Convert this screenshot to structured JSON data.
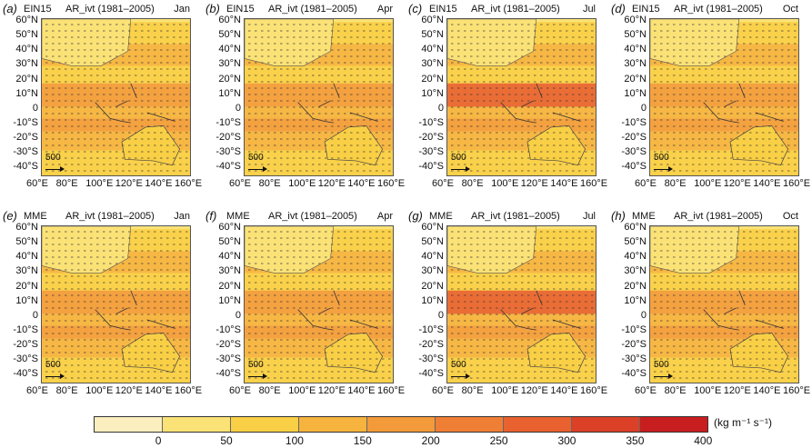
{
  "panels": [
    {
      "label": "(a)",
      "source": "EIN15",
      "title": "AR_ivt (1981–2005)",
      "month": "Jan"
    },
    {
      "label": "(b)",
      "source": "EIN15",
      "title": "AR_ivt (1981–2005)",
      "month": "Apr"
    },
    {
      "label": "(c)",
      "source": "EIN15",
      "title": "AR_ivt (1981–2005)",
      "month": "Jul"
    },
    {
      "label": "(d)",
      "source": "EIN15",
      "title": "AR_ivt (1981–2005)",
      "month": "Oct"
    },
    {
      "label": "(e)",
      "source": "MME",
      "title": "AR_ivt (1981–2005)",
      "month": "Jan"
    },
    {
      "label": "(f)",
      "source": "MME",
      "title": "AR_ivt (1981–2005)",
      "month": "Apr"
    },
    {
      "label": "(g)",
      "source": "MME",
      "title": "AR_ivt (1981–2005)",
      "month": "Jul"
    },
    {
      "label": "(h)",
      "source": "MME",
      "title": "AR_ivt (1981–2005)",
      "month": "Oct"
    }
  ],
  "ref_vector_label": "500",
  "chart_data": {
    "type": "heatmap",
    "panel_grid": "2x4",
    "variable": "AR_ivt",
    "y_ticks": [
      "60°N",
      "50°N",
      "40°N",
      "30°N",
      "20°N",
      "10°N",
      "0",
      "-10°S",
      "-20°S",
      "-30°S",
      "-40°S"
    ],
    "x_ticks": [
      "60°E",
      "80°E",
      "100°E",
      "120°E",
      "140°E",
      "160°E"
    ],
    "ylim": [
      -45,
      62
    ],
    "xlim": [
      60,
      160
    ],
    "colorbar": {
      "ticks": [
        "0",
        "50",
        "100",
        "150",
        "200",
        "250",
        "300",
        "350",
        "400"
      ],
      "unit": "(kg m⁻¹ s⁻¹)",
      "colors": [
        "#fbefbf",
        "#fbe277",
        "#f9cf45",
        "#f6b33e",
        "#f39a3a",
        "#ef7f35",
        "#e8612f",
        "#dc4027",
        "#c91e1f"
      ]
    }
  }
}
